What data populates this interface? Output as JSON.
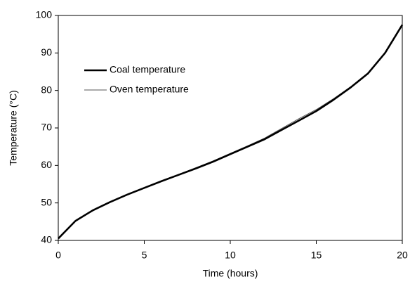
{
  "chart_data": {
    "type": "line",
    "x_label": "Time (hours)",
    "y_label": "Temperature (°C)",
    "x": [
      0,
      1,
      2,
      3,
      4,
      5,
      6,
      7,
      8,
      9,
      10,
      11,
      12,
      13,
      14,
      15,
      16,
      17,
      18,
      19,
      20
    ],
    "series": [
      {
        "name": "Coal temperature",
        "color": "#000000",
        "width": 2.6,
        "values": [
          40.5,
          45.2,
          48,
          50.2,
          52.2,
          54,
          55.8,
          57.5,
          59.2,
          61,
          63,
          65,
          67,
          69.5,
          72,
          74.5,
          77.5,
          80.8,
          84.5,
          90,
          97.5
        ]
      },
      {
        "name": "Oven temperature",
        "color": "#555555",
        "width": 1,
        "values": [
          40.5,
          45.3,
          48.1,
          50.3,
          52.3,
          54.1,
          55.9,
          57.6,
          59.4,
          61.2,
          63.2,
          65.2,
          67.3,
          69.9,
          72.5,
          74.9,
          77.8,
          81,
          84.7,
          90.1,
          97.4
        ]
      }
    ],
    "xlim": [
      0,
      20
    ],
    "xticks": [
      0,
      5,
      10,
      15,
      20
    ],
    "ylim": [
      40,
      100
    ],
    "yticks": [
      40,
      50,
      60,
      70,
      80,
      90,
      100
    ],
    "legend": "upper-left"
  }
}
